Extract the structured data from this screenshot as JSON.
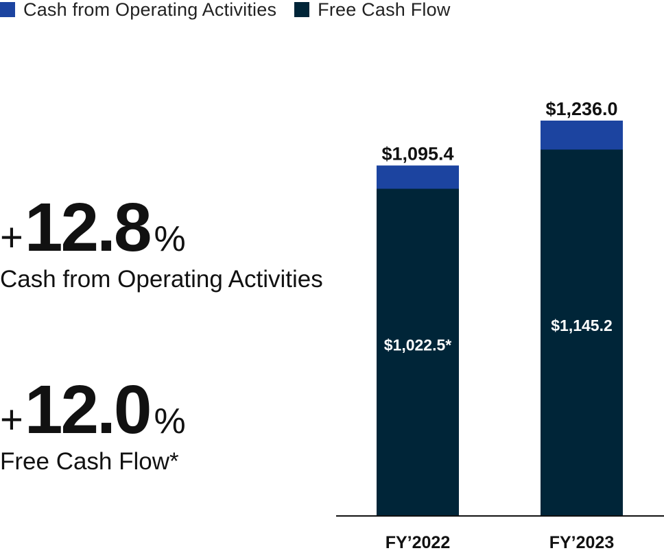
{
  "legend": [
    {
      "label": "Cash from Operating Activities",
      "color": "#1c44a0"
    },
    {
      "label": "Free Cash Flow",
      "color": "#002538"
    }
  ],
  "stats": [
    {
      "sign": "+",
      "number": "12.8",
      "unit": "%",
      "caption": "Cash from Operating Activities"
    },
    {
      "sign": "+",
      "number": "12.0",
      "unit": "%",
      "caption": "Free Cash Flow*"
    }
  ],
  "chart_data": {
    "type": "bar",
    "stacked": "overlay",
    "categories": [
      "FY’2022",
      "FY’2023"
    ],
    "series": [
      {
        "name": "Cash from Operating Activities",
        "values": [
          1095.4,
          1236.0
        ],
        "labels": [
          "$1,095.4",
          "$1,236.0"
        ],
        "color": "#1c44a0"
      },
      {
        "name": "Free Cash Flow",
        "values": [
          1022.5,
          1145.2
        ],
        "labels": [
          "$1,022.5*",
          "$1,145.2"
        ],
        "color": "#002538"
      }
    ],
    "title": "",
    "xlabel": "",
    "ylabel": "",
    "ylim": [
      0,
      1236.0
    ],
    "grid": false,
    "legend_position": "top-left"
  }
}
